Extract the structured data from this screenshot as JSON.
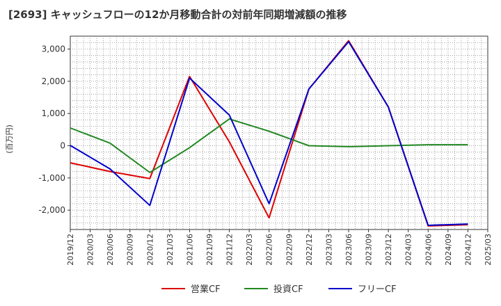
{
  "chart_data": {
    "type": "line",
    "title": "[2693]  キャッシュフローの12か月移動合計の対前年同期増減額の推移",
    "ylabel": "(百万円)",
    "xlabel": "",
    "ylim": [
      -2600,
      3400
    ],
    "yticks": [
      -2000,
      -1000,
      0,
      1000,
      2000,
      3000
    ],
    "ytick_labels": [
      "-2,000",
      "-1,000",
      "0",
      "1,000",
      "2,000",
      "3,000"
    ],
    "x_labels": [
      "2019/12",
      "2020/03",
      "2020/06",
      "2020/09",
      "2020/12",
      "2021/03",
      "2021/06",
      "2021/09",
      "2021/12",
      "2022/03",
      "2022/06",
      "2022/09",
      "2022/12",
      "2023/03",
      "2023/06",
      "2023/09",
      "2023/12",
      "2024/03",
      "2024/06",
      "2024/09",
      "2024/12",
      "2025/03"
    ],
    "grid": true,
    "legend_position": "bottom",
    "series": [
      {
        "name": "営業CF",
        "color": "#dd0000",
        "points": [
          [
            0,
            -530
          ],
          [
            2,
            -800
          ],
          [
            4,
            -1020
          ],
          [
            6,
            2150
          ],
          [
            8,
            120
          ],
          [
            10,
            -2240
          ],
          [
            12,
            1760
          ],
          [
            14,
            3260
          ],
          [
            16,
            1200
          ],
          [
            18,
            -2490
          ],
          [
            20,
            -2450
          ]
        ]
      },
      {
        "name": "投資CF",
        "color": "#228822",
        "points": [
          [
            0,
            550
          ],
          [
            2,
            80
          ],
          [
            4,
            -830
          ],
          [
            6,
            -60
          ],
          [
            8,
            830
          ],
          [
            10,
            450
          ],
          [
            12,
            0
          ],
          [
            14,
            -30
          ],
          [
            16,
            0
          ],
          [
            18,
            30
          ],
          [
            20,
            30
          ]
        ]
      },
      {
        "name": "フリーCF",
        "color": "#0000cc",
        "points": [
          [
            0,
            10
          ],
          [
            2,
            -720
          ],
          [
            4,
            -1850
          ],
          [
            6,
            2100
          ],
          [
            8,
            950
          ],
          [
            10,
            -1800
          ],
          [
            12,
            1760
          ],
          [
            14,
            3230
          ],
          [
            16,
            1200
          ],
          [
            18,
            -2470
          ],
          [
            20,
            -2430
          ]
        ]
      }
    ]
  }
}
